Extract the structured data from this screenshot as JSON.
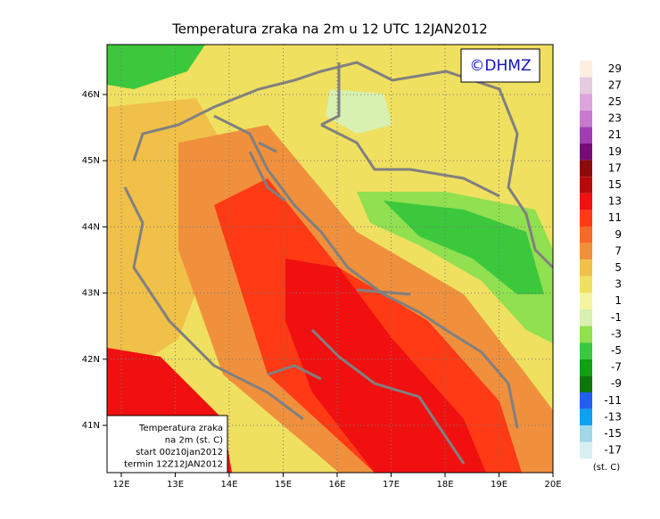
{
  "title": "Temperatura zraka na 2m u 12 UTC 12JAN2012",
  "logo": "©DHMZ",
  "info_box": [
    "Temperatura zraka",
    "na 2m (st. C)",
    "start 00z10jan2012",
    "termin 12Z12JAN2012"
  ],
  "x_ticks": [
    "12E",
    "13E",
    "14E",
    "15E",
    "16E",
    "17E",
    "18E",
    "19E",
    "20E"
  ],
  "y_ticks": [
    "46N",
    "45N",
    "44N",
    "43N",
    "42N",
    "41N"
  ],
  "colorbar": {
    "unit": "(st. C)",
    "levels": [
      {
        "label": "29",
        "color": "#fcefe0"
      },
      {
        "label": "27",
        "color": "#e6cbe0"
      },
      {
        "label": "25",
        "color": "#dba5dc"
      },
      {
        "label": "23",
        "color": "#c77ad0"
      },
      {
        "label": "21",
        "color": "#a23cb4"
      },
      {
        "label": "19",
        "color": "#7a0a78"
      },
      {
        "label": "17",
        "color": "#8c0a0a"
      },
      {
        "label": "15",
        "color": "#b40a0a"
      },
      {
        "label": "13",
        "color": "#f01010"
      },
      {
        "label": "11",
        "color": "#ff3a14"
      },
      {
        "label": "9",
        "color": "#f46a28"
      },
      {
        "label": "7",
        "color": "#f0903c"
      },
      {
        "label": "5",
        "color": "#f0c048"
      },
      {
        "label": "3",
        "color": "#f0e060"
      },
      {
        "label": "1",
        "color": "#f5f5a0"
      },
      {
        "label": "-1",
        "color": "#d8f0b0"
      },
      {
        "label": "-3",
        "color": "#90e050"
      },
      {
        "label": "-5",
        "color": "#3cc83c"
      },
      {
        "label": "-7",
        "color": "#10a010"
      },
      {
        "label": "-9",
        "color": "#0a780a"
      },
      {
        "label": "-11",
        "color": "#2060f0"
      },
      {
        "label": "-13",
        "color": "#10a0f0"
      },
      {
        "label": "-15",
        "color": "#a0d8e8"
      },
      {
        "label": "-17",
        "color": "#d8f0f4"
      }
    ]
  }
}
